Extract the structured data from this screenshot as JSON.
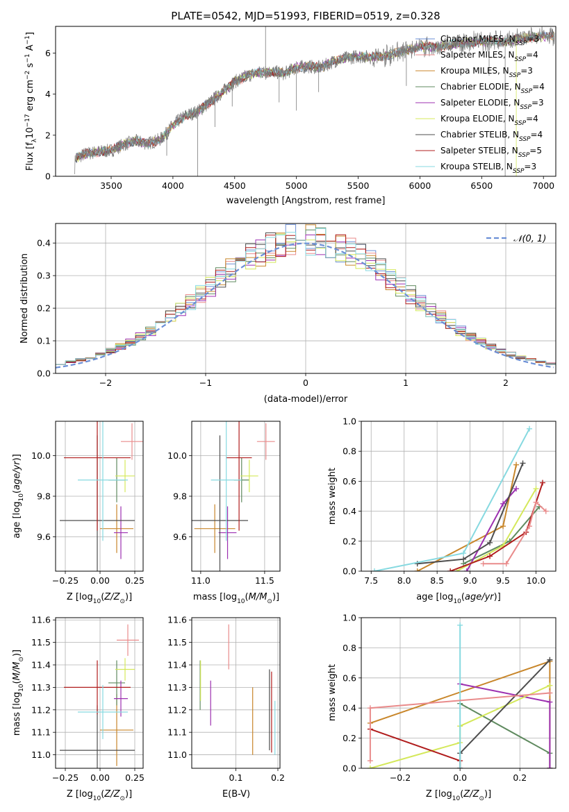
{
  "figure": {
    "title": "PLATE=0542, MJD=51993, FIBERID=0519, z=0.328"
  },
  "series_styles": [
    {
      "name": "Chabrier MILES",
      "nssp": "3",
      "color": "#6b8fd6"
    },
    {
      "name": "Salpeter MILES",
      "nssp": "4",
      "color": "#e98b8b"
    },
    {
      "name": "Kroupa MILES",
      "nssp": "3",
      "color": "#c8862a"
    },
    {
      "name": "Chabrier ELODIE",
      "nssp": "4",
      "color": "#5f8a5f"
    },
    {
      "name": "Salpeter ELODIE",
      "nssp": "3",
      "color": "#9c2fb0"
    },
    {
      "name": "Kroupa ELODIE",
      "nssp": "4",
      "color": "#d4e85a"
    },
    {
      "name": "Chabrier STELIB",
      "nssp": "4",
      "color": "#4d4d4d"
    },
    {
      "name": "Salpeter STELIB",
      "nssp": "5",
      "color": "#b01c1c"
    },
    {
      "name": "Kroupa STELIB",
      "nssp": "3",
      "color": "#86d9e0"
    }
  ],
  "chart_data": [
    {
      "id": "spectrum",
      "type": "line",
      "xlabel": "wavelength [Angstrom, rest frame]",
      "ylabel": "Flux [f_λ 10^-17 erg cm^-2 s^-1 A^-1]",
      "xlim": [
        3050,
        7100
      ],
      "ylim": [
        0,
        7.3
      ],
      "xticks": [
        3500,
        4000,
        4500,
        5000,
        5500,
        6000,
        6500,
        7000
      ],
      "yticks": [
        0,
        2,
        4,
        6
      ],
      "grid": false,
      "legend": "upper-right",
      "continuum": [
        [
          3200,
          0.0
        ],
        [
          3210,
          0.9
        ],
        [
          3300,
          1.1
        ],
        [
          3400,
          1.2
        ],
        [
          3500,
          1.25
        ],
        [
          3600,
          1.55
        ],
        [
          3700,
          1.7
        ],
        [
          3800,
          1.6
        ],
        [
          3900,
          1.8
        ],
        [
          3950,
          2.1
        ],
        [
          4000,
          2.5
        ],
        [
          4100,
          2.95
        ],
        [
          4200,
          3.15
        ],
        [
          4300,
          3.6
        ],
        [
          4400,
          4.1
        ],
        [
          4500,
          4.6
        ],
        [
          4600,
          4.9
        ],
        [
          4700,
          5.05
        ],
        [
          4800,
          5.1
        ],
        [
          4900,
          5.0
        ],
        [
          5000,
          5.3
        ],
        [
          5100,
          5.35
        ],
        [
          5200,
          5.3
        ],
        [
          5300,
          5.6
        ],
        [
          5400,
          5.75
        ],
        [
          5500,
          5.85
        ],
        [
          5600,
          5.8
        ],
        [
          5700,
          5.85
        ],
        [
          5800,
          6.0
        ],
        [
          5900,
          6.15
        ],
        [
          6000,
          6.3
        ],
        [
          6100,
          6.3
        ],
        [
          6200,
          6.35
        ],
        [
          6300,
          6.45
        ],
        [
          6400,
          6.5
        ],
        [
          6500,
          6.55
        ],
        [
          6600,
          6.6
        ],
        [
          6700,
          6.55
        ],
        [
          6800,
          6.7
        ],
        [
          6900,
          6.75
        ],
        [
          7000,
          6.8
        ],
        [
          7080,
          6.85
        ]
      ],
      "dips": [
        [
          3950,
          1.0
        ],
        [
          4200,
          0.0
        ],
        [
          4340,
          2.4
        ],
        [
          4480,
          3.4
        ],
        [
          4750,
          4.7
        ],
        [
          4860,
          3.6
        ],
        [
          5000,
          3.2
        ],
        [
          5180,
          4.1
        ],
        [
          5890,
          4.4
        ],
        [
          6560,
          4.9
        ],
        [
          6690,
          0.0
        ]
      ]
    },
    {
      "id": "residuals",
      "type": "histogram",
      "xlabel": "(data-model)/error",
      "ylabel": "Normed distribution",
      "xlim": [
        -2.5,
        2.5
      ],
      "ylim": [
        0,
        0.46
      ],
      "xticks": [
        -2,
        -1,
        0,
        1,
        2
      ],
      "yticks": [
        0.0,
        0.1,
        0.2,
        0.3,
        0.4
      ],
      "grid": true,
      "legend_label": "𝒩(0, 1)",
      "legend": "upper-right",
      "bin_width": 0.1,
      "normal_curve": {
        "mu": 0,
        "sigma": 1,
        "color": "#6b8fd6",
        "style": "dashed"
      }
    },
    {
      "id": "age-vs-Z",
      "type": "scatter-errorbar",
      "xlabel": "Z [log10(Z/Z☉)]",
      "ylabel": "age  [log10(age/yr)]",
      "xlim": [
        -0.32,
        0.31
      ],
      "ylim": [
        9.43,
        10.17
      ],
      "xticks": [
        -0.25,
        0.0,
        0.25
      ],
      "yticks": [
        9.6,
        9.8,
        10.0
      ],
      "grid": true,
      "points": [
        {
          "x": 0.12,
          "y": 9.64,
          "xerr": 0.12,
          "yerr": 0.12,
          "c": 2
        },
        {
          "x": 0.12,
          "y": 9.88,
          "xerr": 0.06,
          "yerr": 0.11,
          "c": 3
        },
        {
          "x": 0.15,
          "y": 9.62,
          "xerr": 0.05,
          "yerr": 0.13,
          "c": 4
        },
        {
          "x": 0.18,
          "y": 9.9,
          "xerr": 0.07,
          "yerr": 0.08,
          "c": 5
        },
        {
          "x": -0.02,
          "y": 9.68,
          "xerr": 0.27,
          "yerr": 0.42,
          "c": 6
        },
        {
          "x": -0.02,
          "y": 9.99,
          "xerr": 0.24,
          "yerr": 0.36,
          "c": 7
        },
        {
          "x": 0.02,
          "y": 9.88,
          "xerr": 0.18,
          "yerr": 0.3,
          "c": 8
        },
        {
          "x": 0.23,
          "y": 10.07,
          "xerr": 0.08,
          "yerr": 0.09,
          "c": 1
        }
      ]
    },
    {
      "id": "age-vs-mass",
      "type": "scatter-errorbar",
      "xlabel": "mass [log10(M/M☉)]",
      "ylabel": "",
      "xlim": [
        10.93,
        11.62
      ],
      "ylim": [
        9.43,
        10.17
      ],
      "xticks": [
        11.0,
        11.5
      ],
      "yticks": [
        9.6,
        9.8,
        10.0
      ],
      "grid": true,
      "points": [
        {
          "x": 11.11,
          "y": 9.64,
          "xerr": 0.16,
          "yerr": 0.12,
          "c": 2
        },
        {
          "x": 11.32,
          "y": 9.88,
          "xerr": 0.06,
          "yerr": 0.11,
          "c": 3
        },
        {
          "x": 11.21,
          "y": 9.62,
          "xerr": 0.07,
          "yerr": 0.13,
          "c": 4
        },
        {
          "x": 11.38,
          "y": 9.9,
          "xerr": 0.07,
          "yerr": 0.08,
          "c": 5
        },
        {
          "x": 11.15,
          "y": 9.68,
          "xerr": 0.22,
          "yerr": 0.42,
          "c": 6
        },
        {
          "x": 11.3,
          "y": 9.99,
          "xerr": 0.1,
          "yerr": 0.36,
          "c": 7
        },
        {
          "x": 11.2,
          "y": 9.88,
          "xerr": 0.12,
          "yerr": 0.3,
          "c": 8
        },
        {
          "x": 11.51,
          "y": 10.07,
          "xerr": 0.07,
          "yerr": 0.09,
          "c": 1
        }
      ]
    },
    {
      "id": "weight-vs-age",
      "type": "line",
      "xlabel": "age  [log10(age/yr)]",
      "ylabel": "mass weight",
      "xlim": [
        7.35,
        10.3
      ],
      "ylim": [
        0,
        1.0
      ],
      "xticks": [
        7.5,
        8.0,
        8.5,
        9.0,
        9.5,
        10.0
      ],
      "yticks": [
        0.0,
        0.2,
        0.4,
        0.6,
        0.8,
        1.0
      ],
      "grid": true,
      "series": [
        {
          "c": 2,
          "points": [
            [
              8.2,
              0.0
            ],
            [
              9.5,
              0.3
            ],
            [
              9.7,
              0.71
            ]
          ]
        },
        {
          "c": 3,
          "points": [
            [
              8.9,
              0.05
            ],
            [
              9.6,
              0.2
            ],
            [
              10.05,
              0.43
            ]
          ]
        },
        {
          "c": 4,
          "points": [
            [
              8.95,
              0.0
            ],
            [
              9.5,
              0.45
            ],
            [
              9.7,
              0.55
            ]
          ]
        },
        {
          "c": 5,
          "points": [
            [
              8.8,
              0.0
            ],
            [
              9.5,
              0.17
            ],
            [
              10.0,
              0.55
            ]
          ]
        },
        {
          "c": 6,
          "points": [
            [
              8.2,
              0.05
            ],
            [
              8.9,
              0.08
            ],
            [
              9.3,
              0.19
            ],
            [
              9.8,
              0.72
            ]
          ]
        },
        {
          "c": 7,
          "points": [
            [
              8.7,
              0.0
            ],
            [
              9.3,
              0.1
            ],
            [
              9.85,
              0.26
            ],
            [
              10.1,
              0.59
            ]
          ]
        },
        {
          "c": 8,
          "points": [
            [
              7.55,
              0.0
            ],
            [
              8.9,
              0.12
            ],
            [
              9.9,
              0.95
            ]
          ]
        },
        {
          "c": 1,
          "points": [
            [
              9.2,
              0.05
            ],
            [
              9.55,
              0.05
            ],
            [
              9.9,
              0.3
            ],
            [
              10.0,
              0.46
            ],
            [
              10.15,
              0.4
            ]
          ]
        }
      ]
    },
    {
      "id": "mass-vs-Z",
      "type": "scatter-errorbar",
      "xlabel": "Z [log10(Z/Z☉)]",
      "ylabel": "mass [log10(M/M☉)]",
      "xlim": [
        -0.32,
        0.31
      ],
      "ylim": [
        10.94,
        11.61
      ],
      "xticks": [
        -0.25,
        0.0,
        0.25
      ],
      "yticks": [
        11.0,
        11.1,
        11.2,
        11.3,
        11.4,
        11.5,
        11.6
      ],
      "grid": true,
      "points": [
        {
          "x": 0.12,
          "y": 11.11,
          "xerr": 0.12,
          "yerr": 0.16,
          "c": 2
        },
        {
          "x": 0.12,
          "y": 11.32,
          "xerr": 0.06,
          "yerr": 0.1,
          "c": 3
        },
        {
          "x": 0.15,
          "y": 11.25,
          "xerr": 0.05,
          "yerr": 0.08,
          "c": 4
        },
        {
          "x": 0.18,
          "y": 11.38,
          "xerr": 0.07,
          "yerr": 0.05,
          "c": 5
        },
        {
          "x": -0.02,
          "y": 11.02,
          "xerr": 0.27,
          "yerr": 0.2,
          "c": 6
        },
        {
          "x": -0.02,
          "y": 11.3,
          "xerr": 0.24,
          "yerr": 0.12,
          "c": 7
        },
        {
          "x": 0.02,
          "y": 11.19,
          "xerr": 0.18,
          "yerr": 0.12,
          "c": 8
        },
        {
          "x": 0.2,
          "y": 11.51,
          "xerr": 0.08,
          "yerr": 0.07,
          "c": 1
        }
      ]
    },
    {
      "id": "mass-vs-EBV",
      "type": "scatter-errorbar",
      "xlabel": "E(B-V)",
      "ylabel": "",
      "xlim": [
        -0.005,
        0.205
      ],
      "ylim": [
        10.94,
        11.61
      ],
      "xticks": [
        0.1,
        0.2
      ],
      "yticks": [
        11.0,
        11.1,
        11.2,
        11.3,
        11.4,
        11.5,
        11.6
      ],
      "grid": true,
      "points": [
        {
          "x": 0.015,
          "y": 11.31,
          "xerr": 0,
          "yerr": 0.11,
          "c": 3
        },
        {
          "x": 0.016,
          "y": 11.33,
          "xerr": 0,
          "yerr": 0.09,
          "c": 5
        },
        {
          "x": 0.04,
          "y": 11.23,
          "xerr": 0,
          "yerr": 0.1,
          "c": 4
        },
        {
          "x": 0.083,
          "y": 11.48,
          "xerr": 0,
          "yerr": 0.1,
          "c": 1
        },
        {
          "x": 0.14,
          "y": 11.15,
          "xerr": 0,
          "yerr": 0.15,
          "c": 2
        },
        {
          "x": 0.18,
          "y": 11.2,
          "xerr": 0,
          "yerr": 0.18,
          "c": 6
        },
        {
          "x": 0.185,
          "y": 11.19,
          "xerr": 0,
          "yerr": 0.18,
          "c": 7
        },
        {
          "x": 0.193,
          "y": 11.12,
          "xerr": 0,
          "yerr": 0.12,
          "c": 8
        }
      ]
    },
    {
      "id": "weight-vs-Z",
      "type": "line",
      "xlabel": "Z [log10(Z/Z☉)]",
      "ylabel": "mass weight",
      "xlim": [
        -0.33,
        0.32
      ],
      "ylim": [
        0,
        1.0
      ],
      "xticks": [
        -0.2,
        0.0,
        0.2
      ],
      "yticks": [
        0.0,
        0.2,
        0.4,
        0.6,
        0.8,
        1.0
      ],
      "grid": true,
      "series": [
        {
          "c": 2,
          "points": [
            [
              -0.3,
              0.3
            ],
            [
              0.3,
              0.71
            ],
            [
              0.3,
              0.0
            ]
          ]
        },
        {
          "c": 3,
          "points": [
            [
              0.0,
              0.43
            ],
            [
              0.3,
              0.1
            ],
            [
              0.3,
              0.0
            ]
          ]
        },
        {
          "c": 4,
          "points": [
            [
              0.0,
              0.56
            ],
            [
              0.3,
              0.44
            ],
            [
              0.3,
              0.0
            ]
          ]
        },
        {
          "c": 5,
          "points": [
            [
              -0.3,
              0.0
            ],
            [
              0.0,
              0.17
            ],
            [
              0.0,
              0.28
            ],
            [
              0.3,
              0.55
            ]
          ]
        },
        {
          "c": 6,
          "points": [
            [
              0.0,
              0.0
            ],
            [
              0.0,
              0.1
            ],
            [
              0.3,
              0.72
            ]
          ]
        },
        {
          "c": 7,
          "points": [
            [
              -0.3,
              0.26
            ],
            [
              0.0,
              0.05
            ],
            [
              0.0,
              0.0
            ]
          ]
        },
        {
          "c": 8,
          "points": [
            [
              0.0,
              0.95
            ],
            [
              0.0,
              0.0
            ]
          ]
        },
        {
          "c": 1,
          "points": [
            [
              -0.3,
              0.05
            ],
            [
              -0.3,
              0.4
            ],
            [
              0.3,
              0.5
            ]
          ]
        }
      ]
    }
  ]
}
